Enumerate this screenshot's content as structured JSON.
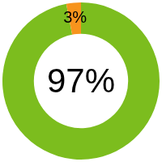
{
  "chart_data": {
    "type": "doughnut",
    "values": [
      97,
      3
    ],
    "value_labels": [
      "97%",
      "3%"
    ],
    "colors": [
      "#7cbd1e",
      "#f7941d"
    ],
    "data_labels": true
  }
}
